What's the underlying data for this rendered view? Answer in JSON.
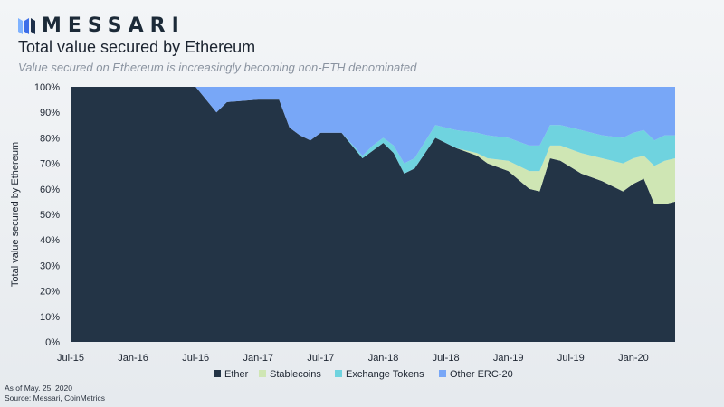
{
  "brand": {
    "name": "MESSARI",
    "logo_icon": "messari-logo-icon"
  },
  "header": {
    "title": "Total value secured by Ethereum",
    "subtitle": "Value secured on Ethereum is increasingly becoming non-ETH denominated"
  },
  "footer": {
    "as_of": "As of May. 25, 2020",
    "source": "Source: Messari, CoinMetrics"
  },
  "chart_data": {
    "type": "area",
    "stacked": true,
    "ylabel": "Total value secured by Ethereum",
    "xlabel": "",
    "ylim": [
      0,
      100
    ],
    "y_unit": "%",
    "y_ticks": [
      0,
      10,
      20,
      30,
      40,
      50,
      60,
      70,
      80,
      90,
      100
    ],
    "x_ticks": [
      "Jul-15",
      "Jan-16",
      "Jul-16",
      "Jan-17",
      "Jul-17",
      "Jan-18",
      "Jul-18",
      "Jan-19",
      "Jul-19",
      "Jan-20"
    ],
    "x_range": [
      "2015-07",
      "2020-05"
    ],
    "grid": false,
    "legend_position": "bottom",
    "x": [
      "2015-07",
      "2016-01",
      "2016-07",
      "2016-09",
      "2016-10",
      "2017-01",
      "2017-03",
      "2017-04",
      "2017-05",
      "2017-06",
      "2017-07",
      "2017-09",
      "2017-11",
      "2017-12",
      "2018-01",
      "2018-02",
      "2018-03",
      "2018-04",
      "2018-06",
      "2018-08",
      "2018-10",
      "2018-11",
      "2019-01",
      "2019-03",
      "2019-04",
      "2019-05",
      "2019-06",
      "2019-08",
      "2019-10",
      "2019-12",
      "2020-01",
      "2020-02",
      "2020-03",
      "2020-04",
      "2020-05"
    ],
    "series": [
      {
        "name": "Ether",
        "color": "#233446",
        "values": [
          100,
          100,
          100,
          90,
          94,
          95,
          95,
          84,
          81,
          79,
          82,
          82,
          72,
          75,
          78,
          74,
          66,
          68,
          80,
          76,
          73,
          70,
          67,
          60,
          59,
          72,
          71,
          66,
          63,
          59,
          62,
          64,
          54,
          54,
          55
        ]
      },
      {
        "name": "Stablecoins",
        "color": "#cfe6b4",
        "values": [
          0,
          0,
          0,
          0,
          0,
          0,
          0,
          0,
          0,
          0,
          0,
          0,
          0,
          0,
          0,
          0,
          0,
          0,
          0,
          0,
          1,
          2,
          4,
          7,
          8,
          5,
          6,
          8,
          9,
          11,
          10,
          9,
          15,
          17,
          17
        ]
      },
      {
        "name": "Exchange Tokens",
        "color": "#6fd3df",
        "values": [
          0,
          0,
          0,
          0,
          0,
          0,
          0,
          0,
          0,
          0,
          0,
          0,
          1,
          2,
          2,
          3,
          4,
          4,
          5,
          7,
          8,
          9,
          9,
          10,
          10,
          8,
          8,
          9,
          9,
          10,
          10,
          10,
          10,
          10,
          9
        ]
      },
      {
        "name": "Other ERC-20",
        "color": "#78a7f7",
        "values": [
          0,
          0,
          0,
          10,
          6,
          5,
          5,
          16,
          19,
          21,
          18,
          18,
          27,
          23,
          20,
          23,
          30,
          28,
          15,
          17,
          18,
          19,
          20,
          23,
          23,
          15,
          15,
          17,
          19,
          20,
          18,
          17,
          21,
          19,
          19
        ]
      }
    ]
  }
}
